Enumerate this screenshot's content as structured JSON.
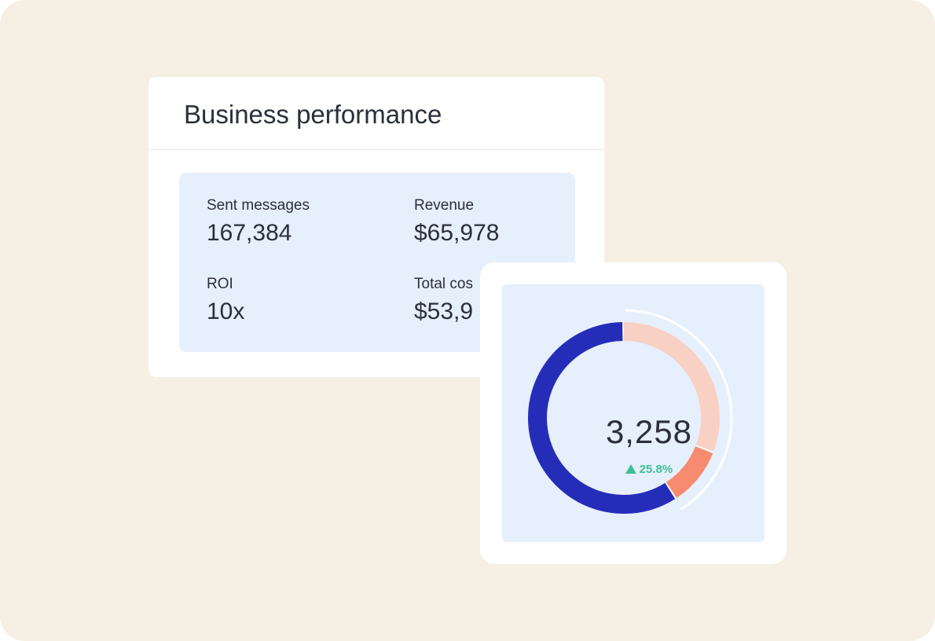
{
  "performance": {
    "title": "Business performance",
    "metrics": [
      {
        "label": "Sent messages",
        "value": "167,384"
      },
      {
        "label": "Revenue",
        "value": "$65,978"
      },
      {
        "label": "ROI",
        "value": "10x"
      },
      {
        "label": "Total cos",
        "value": "$53,9"
      }
    ]
  },
  "donut": {
    "center_value": "3,258",
    "change": "25.8%",
    "change_icon": "up-triangle-icon",
    "segments": [
      {
        "share": 0.31,
        "color": "#f8d0c4"
      },
      {
        "share": 0.1,
        "color": "#f68b6f"
      },
      {
        "share": 0.59,
        "color": "#252db8"
      }
    ],
    "ring_bg_color": "#ffffff"
  }
}
